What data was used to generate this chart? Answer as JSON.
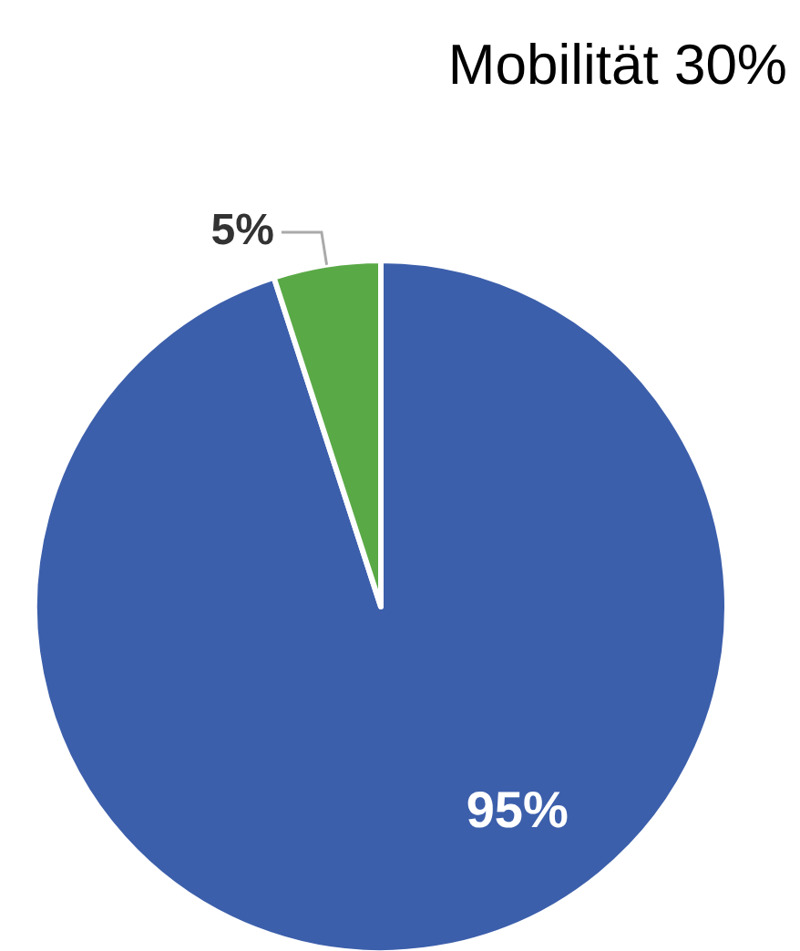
{
  "chart_data": {
    "type": "pie",
    "title": "Mobilität 30%",
    "categories": [
      null,
      null
    ],
    "values": [
      95,
      5
    ],
    "colors": [
      "#3c5fab",
      "#5aa947"
    ],
    "value_labels": [
      "95%",
      "5%"
    ]
  }
}
